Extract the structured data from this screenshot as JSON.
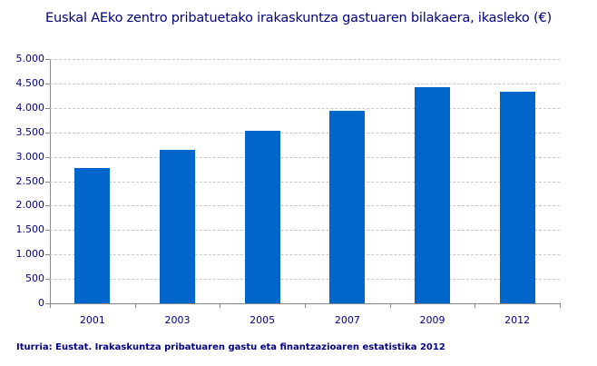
{
  "title": "Euskal AEko zentro pribatuetako irakaskuntza gastuaren bilakaera, ikasleko (€)",
  "source": "Iturria: Eustat. Irakaskuntza pribatuaren gastu eta finantzazioaren estatistika 2012",
  "colors": {
    "bar": "#0066cc",
    "text": "#000080",
    "grid": "#c8c8c8",
    "axis": "#888888"
  },
  "y_ticks": [
    "0",
    "500",
    "1.000",
    "1.500",
    "2.000",
    "2.500",
    "3.000",
    "3.500",
    "4.000",
    "4.500",
    "5.000"
  ],
  "chart_data": {
    "type": "bar",
    "title": "Euskal AEko zentro pribatuetako irakaskuntza gastuaren bilakaera, ikasleko (€)",
    "categories": [
      "2001",
      "2003",
      "2005",
      "2007",
      "2009",
      "2012"
    ],
    "values": [
      2770,
      3140,
      3530,
      3940,
      4420,
      4330
    ],
    "xlabel": "",
    "ylabel": "",
    "ylim": [
      0,
      5000
    ],
    "y_tick_step": 500,
    "grid": true,
    "legend": "none",
    "source": "Iturria: Eustat. Irakaskuntza pribatuaren gastu eta finantzazioaren estatistika 2012"
  }
}
